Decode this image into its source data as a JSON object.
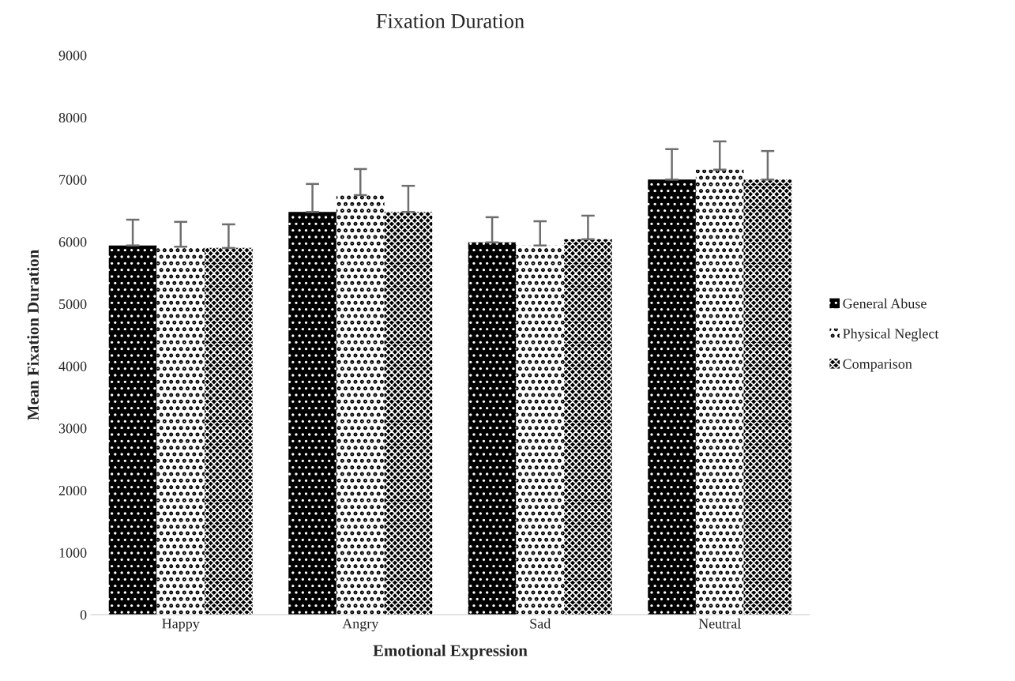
{
  "chart_data": {
    "type": "bar",
    "title": "Fixation Duration",
    "xlabel": "Emotional Expression",
    "ylabel": "Mean Fixation Duration",
    "categories": [
      "Happy",
      "Angry",
      "Sad",
      "Neutral"
    ],
    "series": [
      {
        "name": "General Abuse",
        "color": "#000000",
        "values": [
          5940,
          6480,
          5990,
          7000
        ],
        "errors": [
          [
            5940,
            6355
          ],
          [
            6480,
            6930
          ],
          [
            5990,
            6395
          ],
          [
            7000,
            7490
          ]
        ]
      },
      {
        "name": "Physical Neglect",
        "color": "#ffffff",
        "values": [
          5920,
          6750,
          5940,
          7160
        ],
        "errors": [
          [
            5920,
            6320
          ],
          [
            6750,
            7170
          ],
          [
            5940,
            6330
          ],
          [
            7160,
            7615
          ]
        ]
      },
      {
        "name": "Comparison",
        "color": "#808080",
        "values": [
          5900,
          6480,
          6040,
          7000
        ],
        "errors": [
          [
            5900,
            6280
          ],
          [
            6480,
            6900
          ],
          [
            6040,
            6420
          ],
          [
            7000,
            7460
          ]
        ]
      }
    ],
    "ylim": [
      0,
      9000
    ],
    "yticks": [
      0,
      1000,
      2000,
      3000,
      4000,
      5000,
      6000,
      7000,
      8000,
      9000
    ],
    "grid": false,
    "legend": "right"
  }
}
